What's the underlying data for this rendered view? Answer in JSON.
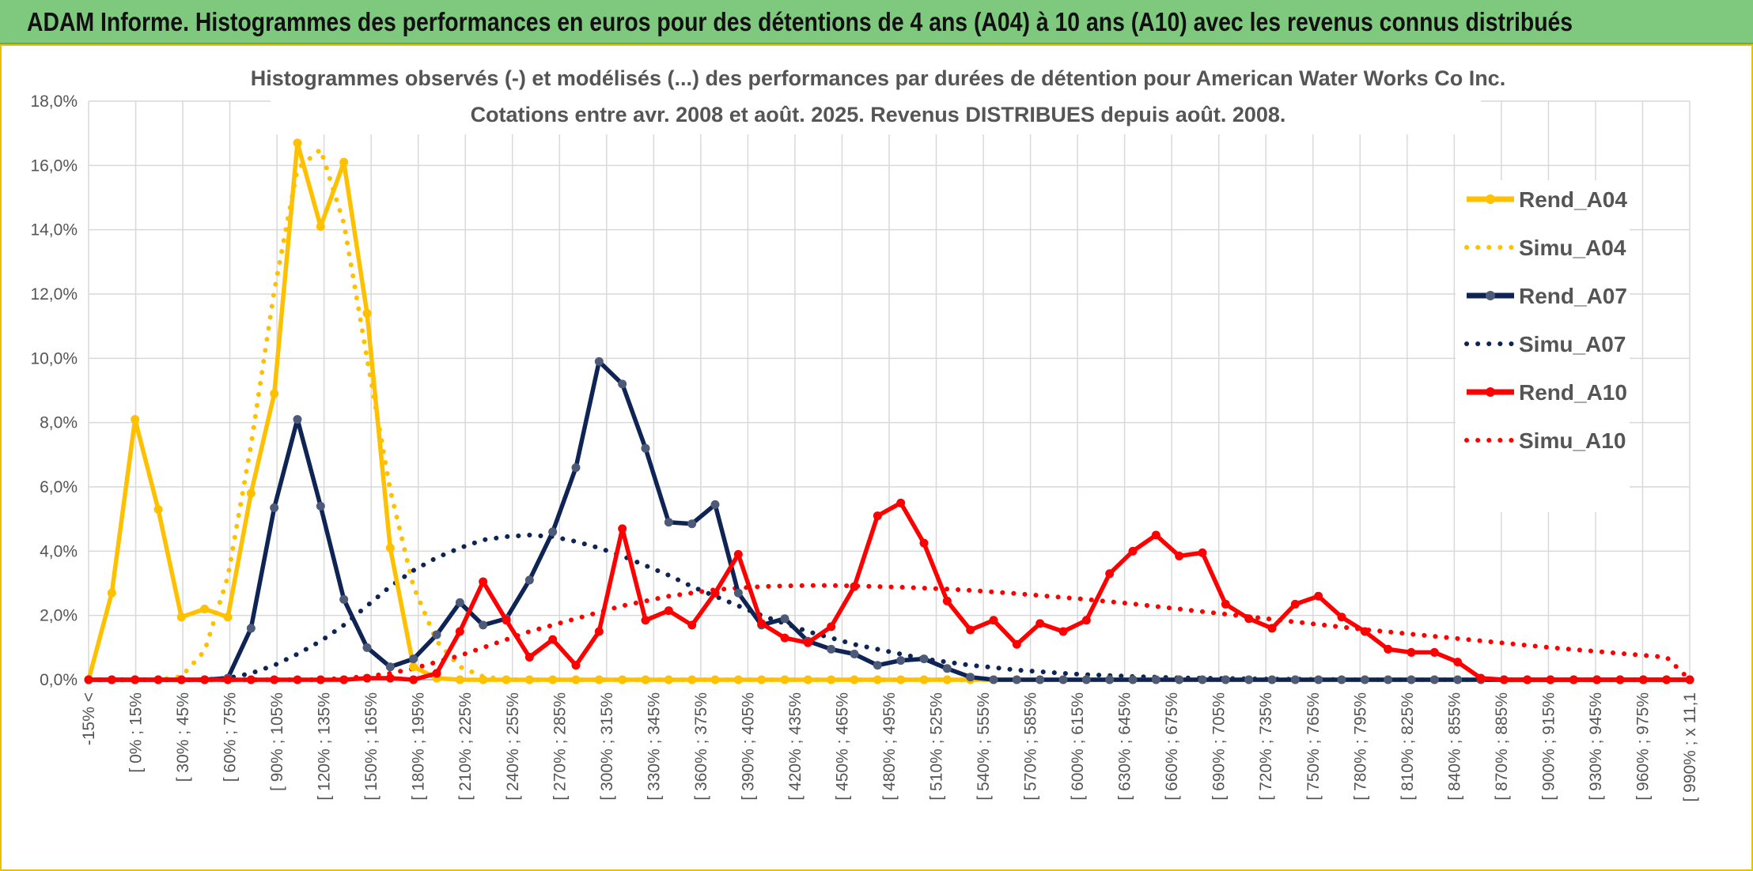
{
  "banner": {
    "title": "ADAM Informe. Histogrammes des performances en euros pour des détentions de 4 ans (A04) à 10 ans (A10) avec les revenus connus distribués"
  },
  "chart_data": {
    "type": "line",
    "title_lines": [
      "Histogrammes observés (-) et modélisés (...) des performances par durées de détention pour American Water Works Co Inc.",
      "Cotations entre avr. 2008 et août. 2025. Revenus DISTRIBUES depuis août. 2008."
    ],
    "xlabel": "",
    "ylabel": "",
    "ylim": [
      0,
      18
    ],
    "yticks": [
      "0,0%",
      "2,0%",
      "4,0%",
      "6,0%",
      "8,0%",
      "10,0%",
      "12,0%",
      "14,0%",
      "16,0%",
      "18,0%"
    ],
    "grid": true,
    "legend_position": "right",
    "x_labels": [
      "-15% <",
      "[ 0% ; 15%",
      "[ 30% ; 45%",
      "[ 60% ; 75%",
      "[ 90% ; 105%",
      "[ 120% ; 135%",
      "[ 150% ; 165%",
      "[ 180% ; 195%",
      "[ 210% ; 225%",
      "[ 240% ; 255%",
      "[ 270% ; 285%",
      "[ 300% ; 315%",
      "[ 330% ; 345%",
      "[ 360% ; 375%",
      "[ 390% ; 405%",
      "[ 420% ; 435%",
      "[ 450% ; 465%",
      "[ 480% ; 495%",
      "[ 510% ; 525%",
      "[ 540% ; 555%",
      "[ 570% ; 585%",
      "[ 600% ; 615%",
      "[ 630% ; 645%",
      "[ 660% ; 675%",
      "[ 690% ; 705%",
      "[ 720% ; 735%",
      "[ 750% ; 765%",
      "[ 780% ; 795%",
      "[ 810% ; 825%",
      "[ 840% ; 855%",
      "[ 870% ; 885%",
      "[ 900% ; 915%",
      "[ 930% ; 945%",
      "[ 960% ; 975%",
      "[ 990% ; x 11,1"
    ],
    "series": [
      {
        "name": "Rend_A04",
        "style": "solid",
        "color": "#ffc000",
        "markers": true,
        "values": [
          0,
          2.7,
          8.1,
          5.3,
          1.95,
          2.2,
          1.95,
          5.8,
          8.9,
          16.7,
          14.1,
          16.1,
          11.4,
          4.1,
          0.4,
          0.05,
          0,
          0,
          0,
          0,
          0,
          0,
          0,
          0,
          0,
          0,
          0,
          0,
          0,
          0,
          0,
          0,
          0,
          0,
          0,
          0,
          0,
          0,
          0,
          0,
          0,
          0,
          0,
          0,
          0,
          0,
          0,
          0,
          0,
          0,
          0,
          0,
          0,
          0,
          0,
          0,
          0,
          0,
          0,
          0,
          0,
          0,
          0,
          0,
          0,
          0,
          0,
          0,
          0,
          0
        ]
      },
      {
        "name": "Simu_A04",
        "style": "dotted",
        "color": "#ffc000",
        "markers": false,
        "values": [
          0,
          0,
          0,
          0,
          0.1,
          0.9,
          3.2,
          7.3,
          12.1,
          15.9,
          16.5,
          14.2,
          10.0,
          5.9,
          2.9,
          1.2,
          0.4,
          0.1,
          0,
          0,
          0,
          0,
          0,
          0,
          0,
          0,
          0,
          0,
          0,
          0,
          0,
          0,
          0,
          0,
          0,
          0,
          0,
          0,
          0,
          0,
          0,
          0,
          0,
          0,
          0,
          0,
          0,
          0,
          0,
          0,
          0,
          0,
          0,
          0,
          0,
          0,
          0,
          0,
          0,
          0,
          0,
          0,
          0,
          0,
          0,
          0,
          0,
          0,
          0,
          0
        ]
      },
      {
        "name": "Rend_A07",
        "style": "solid",
        "color": "#0e2454",
        "markers": true,
        "values": [
          0,
          0,
          0,
          0,
          0,
          0,
          0.05,
          1.6,
          5.35,
          8.1,
          5.4,
          2.5,
          1.0,
          0.4,
          0.65,
          1.4,
          2.4,
          1.7,
          1.9,
          3.1,
          4.6,
          6.6,
          9.9,
          9.2,
          7.2,
          4.9,
          4.85,
          5.45,
          2.7,
          1.7,
          1.9,
          1.2,
          0.95,
          0.8,
          0.45,
          0.6,
          0.65,
          0.35,
          0.08,
          0,
          0,
          0,
          0,
          0,
          0,
          0,
          0,
          0,
          0,
          0,
          0,
          0,
          0,
          0,
          0,
          0,
          0,
          0,
          0,
          0,
          0,
          0,
          0,
          0,
          0,
          0,
          0,
          0,
          0,
          0
        ]
      },
      {
        "name": "Simu_A07",
        "style": "dotted",
        "color": "#0e2454",
        "markers": false,
        "values": [
          0,
          0,
          0,
          0,
          0,
          0,
          0.05,
          0.2,
          0.45,
          0.8,
          1.2,
          1.7,
          2.3,
          2.9,
          3.4,
          3.8,
          4.1,
          4.35,
          4.45,
          4.5,
          4.45,
          4.3,
          4.1,
          3.85,
          3.55,
          3.25,
          2.9,
          2.6,
          2.3,
          2.0,
          1.75,
          1.5,
          1.3,
          1.1,
          0.95,
          0.8,
          0.65,
          0.55,
          0.45,
          0.38,
          0.3,
          0.25,
          0.2,
          0.16,
          0.13,
          0.1,
          0.08,
          0.06,
          0.05,
          0.04,
          0.03,
          0.02,
          0.02,
          0.01,
          0.01,
          0,
          0,
          0,
          0,
          0,
          0,
          0,
          0,
          0,
          0,
          0,
          0,
          0,
          0,
          0
        ]
      },
      {
        "name": "Rend_A10",
        "style": "solid",
        "color": "#ff0000",
        "markers": true,
        "values": [
          0,
          0,
          0,
          0,
          0,
          0,
          0,
          0,
          0,
          0,
          0,
          0,
          0.05,
          0.05,
          0,
          0.2,
          1.5,
          3.05,
          1.85,
          0.7,
          1.25,
          0.45,
          1.5,
          4.7,
          1.85,
          2.15,
          1.7,
          2.7,
          3.9,
          1.75,
          1.3,
          1.15,
          1.65,
          2.9,
          5.1,
          5.5,
          4.25,
          2.45,
          1.55,
          1.85,
          1.1,
          1.75,
          1.5,
          1.85,
          3.3,
          4.0,
          4.5,
          3.85,
          3.95,
          2.35,
          1.9,
          1.6,
          2.35,
          2.6,
          1.95,
          1.5,
          0.95,
          0.85,
          0.85,
          0.55,
          0.05,
          0,
          0,
          0,
          0,
          0,
          0,
          0,
          0,
          0
        ]
      },
      {
        "name": "Simu_A10",
        "style": "dotted",
        "color": "#ff0000",
        "markers": false,
        "values": [
          0,
          0,
          0,
          0,
          0,
          0,
          0,
          0,
          0,
          0,
          0,
          0.05,
          0.1,
          0.2,
          0.35,
          0.55,
          0.75,
          1.0,
          1.25,
          1.5,
          1.7,
          1.9,
          2.1,
          2.3,
          2.45,
          2.6,
          2.7,
          2.8,
          2.85,
          2.9,
          2.92,
          2.93,
          2.93,
          2.92,
          2.9,
          2.88,
          2.85,
          2.82,
          2.78,
          2.73,
          2.68,
          2.62,
          2.56,
          2.5,
          2.43,
          2.36,
          2.28,
          2.2,
          2.12,
          2.04,
          1.96,
          1.88,
          1.8,
          1.72,
          1.64,
          1.56,
          1.49,
          1.42,
          1.35,
          1.28,
          1.21,
          1.14,
          1.07,
          1.0,
          0.94,
          0.88,
          0.82,
          0.76,
          0.7,
          0
        ]
      }
    ]
  }
}
